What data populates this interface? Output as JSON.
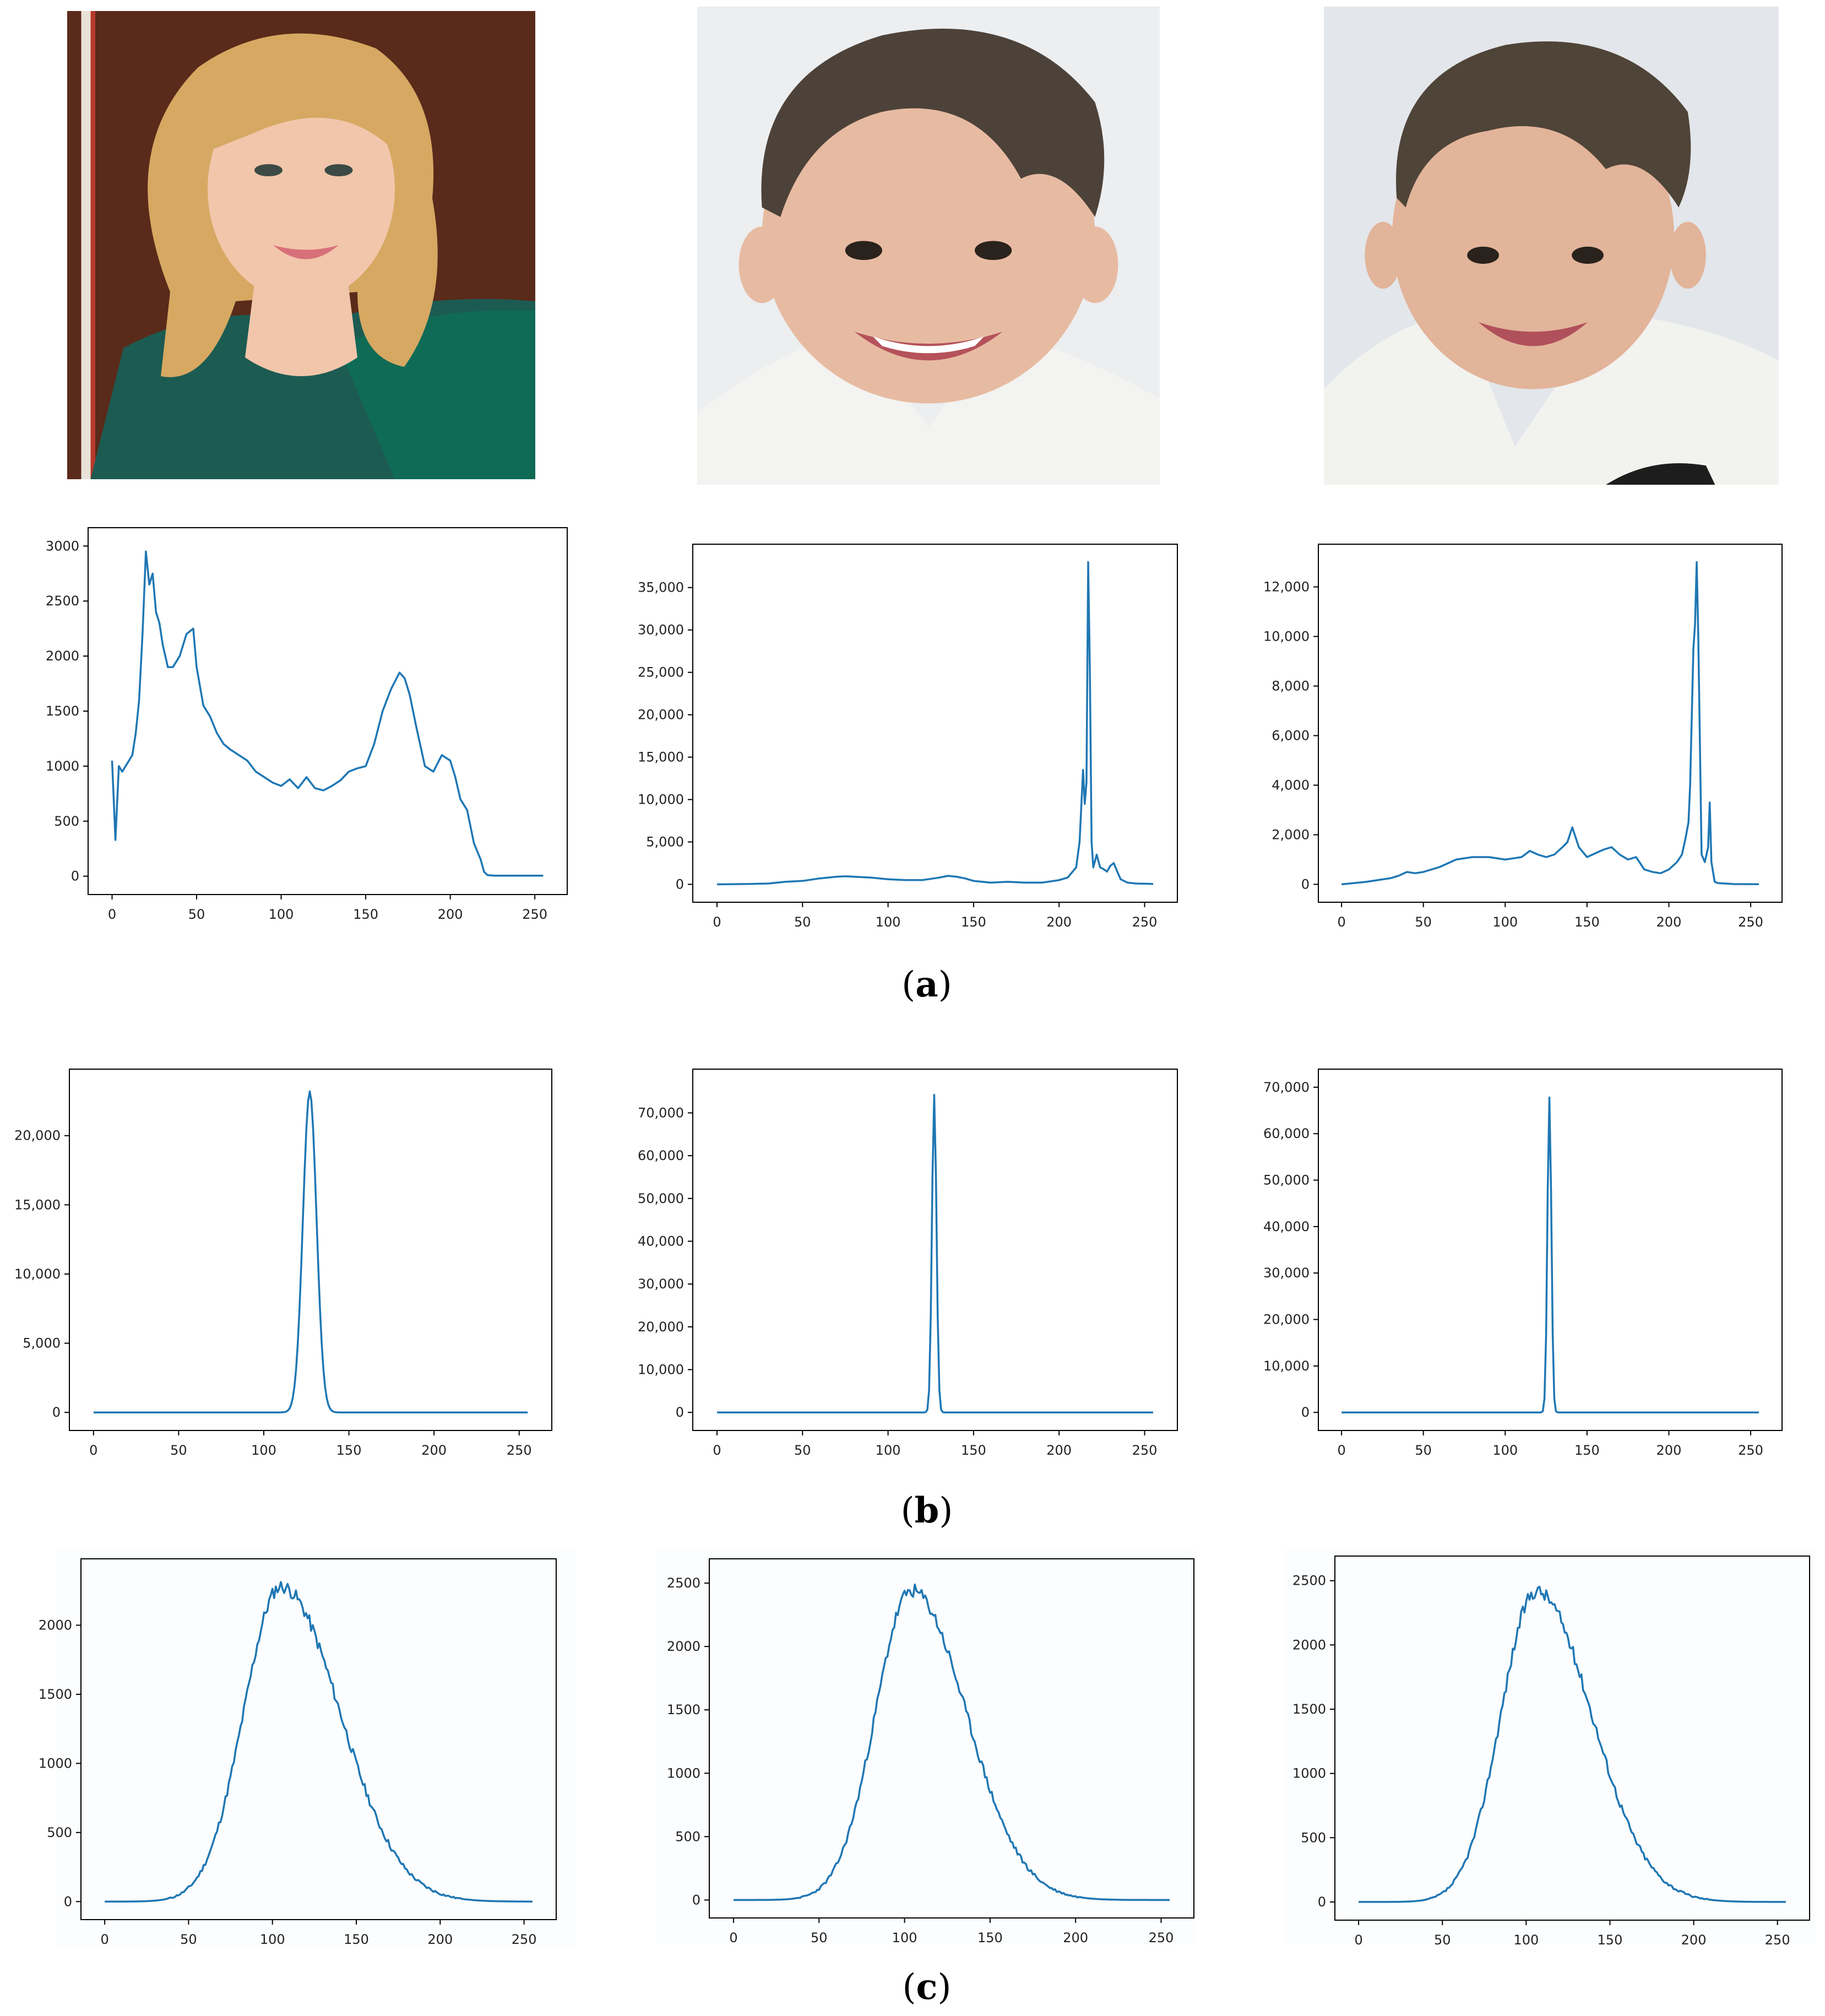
{
  "captions": {
    "a": "a",
    "b": "b",
    "c": "c"
  },
  "photos": [
    {
      "name": "woman-photo",
      "hair": "#d6a862",
      "skin": "#f1c6ab",
      "bg": "#5a2a1a",
      "clothes": "#1c5b52"
    },
    {
      "name": "boy-photo-1",
      "hair": "#4d4239",
      "skin": "#e7bba2",
      "bg": "#eceef0",
      "clothes": "#f3f3f1"
    },
    {
      "name": "boy-photo-2",
      "hair": "#4f4438",
      "skin": "#e2b49a",
      "bg": "#e3e6ea",
      "clothes": "#f2f2ef"
    }
  ],
  "colors": {
    "line": "#1f77b4",
    "axis": "#000000",
    "tick_label": "#222222",
    "row_c_bg": "#fbfdfe"
  },
  "chart_data": [
    {
      "id": "a1",
      "type": "line",
      "row": "a",
      "xlim": [
        0,
        255
      ],
      "ylim": [
        0,
        3000
      ],
      "xticks": [
        0,
        50,
        100,
        150,
        200,
        250
      ],
      "yticks": [
        0,
        500,
        1000,
        1500,
        2000,
        2500,
        3000
      ],
      "ytick_format": "plain",
      "series": [
        {
          "x": [
            0,
            2,
            4,
            6,
            8,
            10,
            12,
            14,
            16,
            18,
            20,
            22,
            24,
            26,
            28,
            30,
            33,
            36,
            40,
            44,
            48,
            50,
            54,
            58,
            62,
            66,
            70,
            75,
            80,
            85,
            90,
            95,
            100,
            105,
            110,
            115,
            120,
            125,
            130,
            135,
            140,
            145,
            150,
            155,
            160,
            165,
            170,
            173,
            176,
            180,
            185,
            190,
            195,
            200,
            203,
            206,
            210,
            214,
            218,
            220,
            222,
            226,
            230,
            240,
            255
          ],
          "y": [
            1050,
            330,
            1000,
            950,
            1000,
            1050,
            1100,
            1300,
            1600,
            2200,
            2950,
            2650,
            2750,
            2400,
            2300,
            2100,
            1900,
            1900,
            2000,
            2200,
            2250,
            1900,
            1550,
            1450,
            1300,
            1200,
            1150,
            1100,
            1050,
            950,
            900,
            850,
            820,
            880,
            800,
            900,
            800,
            780,
            820,
            870,
            950,
            980,
            1000,
            1200,
            1500,
            1700,
            1850,
            1800,
            1650,
            1350,
            1000,
            950,
            1100,
            1050,
            900,
            700,
            600,
            300,
            150,
            40,
            10,
            5,
            5,
            5,
            5
          ]
        }
      ]
    },
    {
      "id": "a2",
      "type": "line",
      "row": "a",
      "xlim": [
        0,
        255
      ],
      "ylim": [
        0,
        38000
      ],
      "xticks": [
        0,
        50,
        100,
        150,
        200,
        250
      ],
      "yticks": [
        0,
        5000,
        10000,
        15000,
        20000,
        25000,
        30000,
        35000
      ],
      "ytick_format": "comma",
      "series": [
        {
          "x": [
            0,
            20,
            30,
            40,
            50,
            60,
            70,
            75,
            80,
            90,
            100,
            110,
            120,
            130,
            135,
            140,
            145,
            150,
            160,
            170,
            180,
            190,
            200,
            205,
            210,
            212,
            214,
            215,
            216,
            217,
            218,
            219,
            220,
            222,
            224,
            226,
            228,
            230,
            232,
            234,
            236,
            240,
            245,
            255
          ],
          "y": [
            0,
            50,
            100,
            300,
            400,
            700,
            900,
            950,
            900,
            800,
            600,
            500,
            500,
            800,
            1000,
            900,
            700,
            400,
            200,
            300,
            200,
            200,
            500,
            800,
            2000,
            5000,
            13500,
            9500,
            12000,
            38000,
            25000,
            5000,
            2000,
            3500,
            2000,
            1800,
            1500,
            2200,
            2500,
            1500,
            600,
            200,
            100,
            50
          ]
        }
      ]
    },
    {
      "id": "a3",
      "type": "line",
      "row": "a",
      "xlim": [
        0,
        255
      ],
      "ylim": [
        0,
        13000
      ],
      "xticks": [
        0,
        50,
        100,
        150,
        200,
        250
      ],
      "yticks": [
        0,
        2000,
        4000,
        6000,
        8000,
        10000,
        12000
      ],
      "ytick_format": "comma",
      "series": [
        {
          "x": [
            0,
            15,
            25,
            30,
            35,
            40,
            45,
            50,
            60,
            70,
            80,
            90,
            100,
            105,
            110,
            115,
            120,
            125,
            130,
            135,
            138,
            141,
            145,
            150,
            160,
            165,
            170,
            175,
            180,
            185,
            190,
            195,
            200,
            205,
            208,
            210,
            212,
            213,
            215,
            216,
            217,
            218,
            220,
            222,
            224,
            225,
            226,
            228,
            230,
            240,
            255
          ],
          "y": [
            0,
            100,
            200,
            250,
            350,
            500,
            450,
            500,
            700,
            1000,
            1100,
            1100,
            1000,
            1050,
            1100,
            1350,
            1200,
            1100,
            1200,
            1500,
            1700,
            2300,
            1500,
            1100,
            1400,
            1500,
            1200,
            1000,
            1100,
            600,
            500,
            450,
            600,
            900,
            1200,
            1800,
            2500,
            4000,
            9500,
            10500,
            13000,
            10000,
            1200,
            900,
            1500,
            3300,
            900,
            100,
            50,
            10,
            5
          ]
        }
      ]
    },
    {
      "id": "b1",
      "type": "line",
      "row": "b",
      "xlim": [
        0,
        255
      ],
      "ylim": [
        0,
        23500
      ],
      "xticks": [
        0,
        50,
        100,
        150,
        200,
        250
      ],
      "yticks": [
        0,
        5000,
        10000,
        15000,
        20000
      ],
      "ytick_format": "comma",
      "series": [
        {
          "gauss": {
            "mu": 127,
            "sigma": 4.0,
            "peak": 23200
          }
        }
      ]
    },
    {
      "id": "b2",
      "type": "line",
      "row": "b",
      "xlim": [
        0,
        255
      ],
      "ylim": [
        0,
        76000
      ],
      "xticks": [
        0,
        50,
        100,
        150,
        200,
        250
      ],
      "yticks": [
        0,
        10000,
        20000,
        30000,
        40000,
        50000,
        60000,
        70000
      ],
      "ytick_format": "comma",
      "series": [
        {
          "gauss": {
            "mu": 127,
            "sigma": 1.3,
            "peak": 74200
          }
        }
      ]
    },
    {
      "id": "b3",
      "type": "line",
      "row": "b",
      "xlim": [
        0,
        255
      ],
      "ylim": [
        0,
        70000
      ],
      "xticks": [
        0,
        50,
        100,
        150,
        200,
        250
      ],
      "yticks": [
        0,
        10000,
        20000,
        30000,
        40000,
        50000,
        60000,
        70000
      ],
      "ytick_format": "comma",
      "series": [
        {
          "gauss": {
            "mu": 127,
            "sigma": 1.2,
            "peak": 67800
          }
        }
      ]
    },
    {
      "id": "c1",
      "type": "line",
      "row": "c",
      "xlim": [
        0,
        255
      ],
      "ylim": [
        0,
        2350
      ],
      "xticks": [
        0,
        50,
        100,
        150,
        200,
        250
      ],
      "yticks": [
        0,
        500,
        1000,
        1500,
        2000
      ],
      "ytick_format": "plain",
      "series": [
        {
          "bell": {
            "mu": 105,
            "sigma_l": 22,
            "sigma_r": 35,
            "peak": 2280,
            "noise": 50,
            "seed": 11
          }
        }
      ]
    },
    {
      "id": "c2",
      "type": "line",
      "row": "c",
      "xlim": [
        0,
        255
      ],
      "ylim": [
        0,
        2550
      ],
      "xticks": [
        0,
        50,
        100,
        150,
        200,
        250
      ],
      "yticks": [
        0,
        500,
        1000,
        1500,
        2000,
        2500
      ],
      "ytick_format": "plain",
      "series": [
        {
          "bell": {
            "mu": 104,
            "sigma_l": 21,
            "sigma_r": 32,
            "peak": 2440,
            "noise": 55,
            "seed": 23
          }
        }
      ]
    },
    {
      "id": "c3",
      "type": "line",
      "row": "c",
      "xlim": [
        0,
        255
      ],
      "ylim": [
        0,
        2550
      ],
      "xticks": [
        0,
        50,
        100,
        150,
        200,
        250
      ],
      "yticks": [
        0,
        500,
        1000,
        1500,
        2000,
        2500
      ],
      "ytick_format": "plain",
      "series": [
        {
          "bell": {
            "mu": 106,
            "sigma_l": 21,
            "sigma_r": 33,
            "peak": 2420,
            "noise": 55,
            "seed": 37
          }
        }
      ]
    }
  ]
}
